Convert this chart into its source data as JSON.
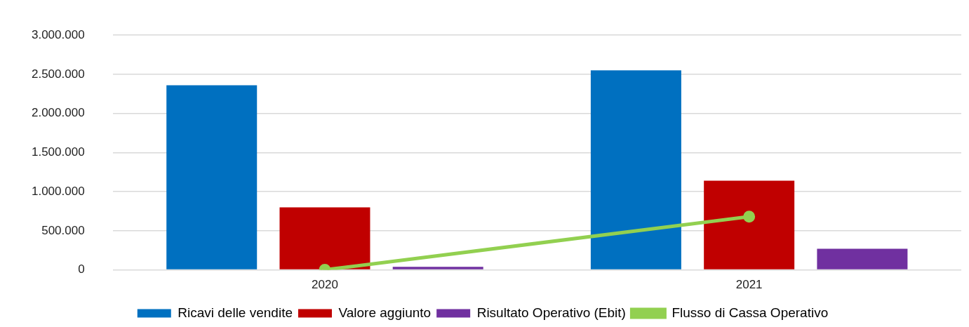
{
  "chart_data": {
    "type": "bar",
    "categories": [
      "2020",
      "2021"
    ],
    "series": [
      {
        "name": "Ricavi delle vendite",
        "color": "#0070c0",
        "values": [
          2360000,
          2550000
        ]
      },
      {
        "name": "Valore aggiunto",
        "color": "#c00000",
        "values": [
          800000,
          1140000
        ]
      },
      {
        "name": "Risultato Operativo (Ebit)",
        "color": "#7030a0",
        "values": [
          40000,
          270000
        ]
      },
      {
        "name": "Flusso di Cassa Operativo",
        "type": "line",
        "color": "#92d050",
        "values": [
          0,
          680000
        ],
        "marker": "circle"
      }
    ],
    "ylim": [
      0,
      3000000
    ],
    "yticks": [
      {
        "value": 0,
        "label": "0"
      },
      {
        "value": 500000,
        "label": "500.000"
      },
      {
        "value": 1000000,
        "label": "1.000.000"
      },
      {
        "value": 1500000,
        "label": "1.500.000"
      },
      {
        "value": 2000000,
        "label": "2.000.000"
      },
      {
        "value": 2500000,
        "label": "2.500.000"
      },
      {
        "value": 3000000,
        "label": "3.000.000"
      }
    ],
    "grid": "y",
    "legend": "bottom"
  }
}
